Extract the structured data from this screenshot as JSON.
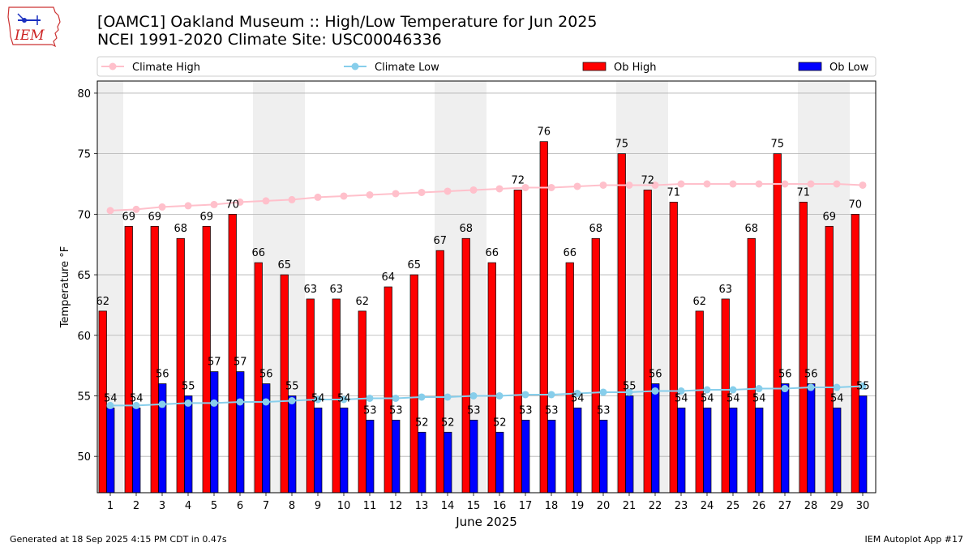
{
  "header": {
    "title_line1": "[OAMC1] Oakland Museum :: High/Low Temperature for Jun 2025",
    "title_line2": "NCEI 1991-2020 Climate Site: USC00046336"
  },
  "logo": {
    "text": "IEM",
    "icon": "iowa-state-outline-logo"
  },
  "footer": {
    "generated": "Generated at 18 Sep 2025 4:15 PM CDT in 0.47s",
    "app": "IEM Autoplot App #17"
  },
  "chart_data": {
    "type": "bar",
    "title": "[OAMC1] Oakland Museum :: High/Low Temperature for Jun 2025",
    "subtitle": "NCEI 1991-2020 Climate Site: USC00046336",
    "xlabel": "June 2025",
    "ylabel": "Temperature °F",
    "ylim": [
      47,
      81
    ],
    "yticks": [
      50,
      55,
      60,
      65,
      70,
      75,
      80
    ],
    "grid": "horizontal",
    "legend_placement": "top",
    "categories": [
      "1",
      "2",
      "3",
      "4",
      "5",
      "6",
      "7",
      "8",
      "9",
      "10",
      "11",
      "12",
      "13",
      "14",
      "15",
      "16",
      "17",
      "18",
      "19",
      "20",
      "21",
      "22",
      "23",
      "24",
      "25",
      "26",
      "27",
      "28",
      "29",
      "30"
    ],
    "weekend_shading_days": [
      1,
      7,
      8,
      14,
      15,
      21,
      22,
      28,
      29
    ],
    "series": [
      {
        "name": "Ob High",
        "kind": "bar",
        "color": "#ff0000",
        "values": [
          62,
          69,
          69,
          68,
          69,
          70,
          66,
          65,
          63,
          63,
          62,
          64,
          65,
          67,
          68,
          66,
          72,
          76,
          66,
          68,
          75,
          72,
          71,
          62,
          63,
          68,
          75,
          71,
          69,
          70
        ]
      },
      {
        "name": "Ob Low",
        "kind": "bar",
        "color": "#0000ff",
        "values": [
          54,
          54,
          56,
          55,
          57,
          57,
          56,
          55,
          54,
          54,
          53,
          53,
          52,
          52,
          53,
          52,
          53,
          53,
          54,
          53,
          55,
          56,
          54,
          54,
          54,
          54,
          56,
          56,
          54,
          55
        ]
      },
      {
        "name": "Climate High",
        "kind": "line",
        "color": "#ffc0cb",
        "values": [
          70.3,
          70.4,
          70.6,
          70.7,
          70.8,
          71.0,
          71.1,
          71.2,
          71.4,
          71.5,
          71.6,
          71.7,
          71.8,
          71.9,
          72.0,
          72.1,
          72.2,
          72.2,
          72.3,
          72.4,
          72.4,
          72.4,
          72.5,
          72.5,
          72.5,
          72.5,
          72.5,
          72.5,
          72.5,
          72.4
        ]
      },
      {
        "name": "Climate Low",
        "kind": "line",
        "color": "#87ceeb",
        "values": [
          54.2,
          54.2,
          54.3,
          54.4,
          54.4,
          54.5,
          54.5,
          54.6,
          54.7,
          54.7,
          54.8,
          54.8,
          54.9,
          54.9,
          55.0,
          55.0,
          55.1,
          55.1,
          55.2,
          55.3,
          55.3,
          55.4,
          55.4,
          55.5,
          55.5,
          55.6,
          55.6,
          55.7,
          55.7,
          55.8
        ]
      }
    ]
  }
}
